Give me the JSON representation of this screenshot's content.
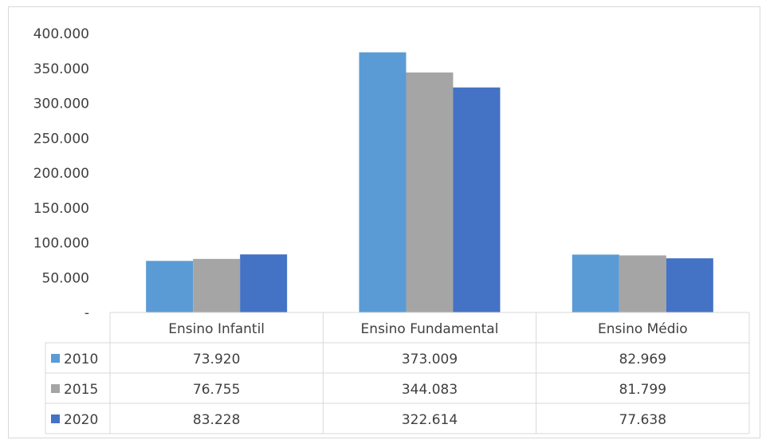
{
  "chart_data": {
    "type": "bar",
    "categories": [
      "Ensino Infantil",
      "Ensino Fundamental",
      "Ensino Médio"
    ],
    "series": [
      {
        "name": "2010",
        "values": [
          73920,
          373009,
          82969
        ],
        "color": "#5b9bd5"
      },
      {
        "name": "2015",
        "values": [
          76755,
          344083,
          81799
        ],
        "color": "#a5a5a5"
      },
      {
        "name": "2020",
        "values": [
          83228,
          322614,
          77638
        ],
        "color": "#4472c4"
      }
    ],
    "value_labels": [
      [
        "73.920",
        "373.009",
        "82.969"
      ],
      [
        "76.755",
        "344.083",
        "81.799"
      ],
      [
        "83.228",
        "322.614",
        "77.638"
      ]
    ],
    "ylim": [
      0,
      400000
    ],
    "yticks": [
      0,
      50000,
      100000,
      150000,
      200000,
      250000,
      300000,
      350000,
      400000
    ],
    "ytick_labels": [
      "-",
      "50.000",
      "100.000",
      "150.000",
      "200.000",
      "250.000",
      "300.000",
      "350.000",
      "400.000"
    ],
    "grid": false,
    "legend": "data-table",
    "title": "",
    "xlabel": "",
    "ylabel": ""
  }
}
